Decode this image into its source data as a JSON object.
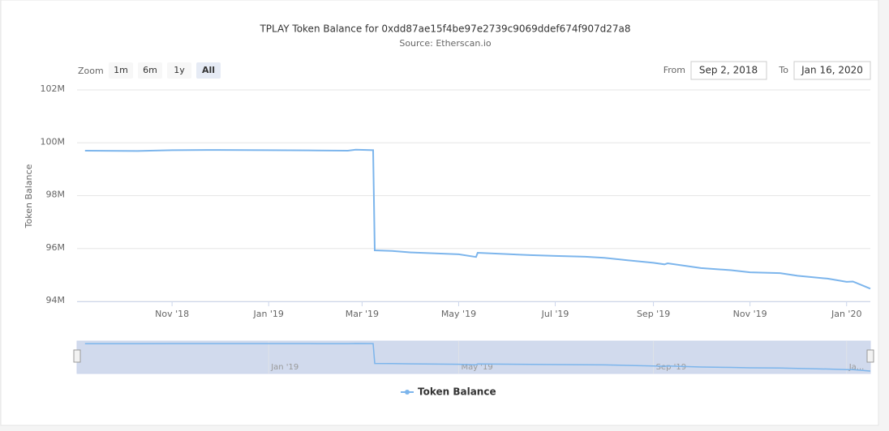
{
  "chart_data": {
    "type": "line",
    "title": "TPLAY Token Balance for 0xdd87ae15f4be97e2739c9069ddef674f907d27a8",
    "subtitle": "Source: Etherscan.io",
    "y_label": "Token Balance",
    "range_selector": {
      "label": "Zoom",
      "buttons": [
        "1m",
        "6m",
        "1y",
        "All"
      ],
      "selected": 3,
      "from_label": "From",
      "from": "Sep 2, 2018",
      "to_label": "To",
      "to": "Jan 16, 2020"
    },
    "x": [
      "2018-09-07",
      "2018-10-10",
      "2018-11-01",
      "2018-12-01",
      "2019-01-01",
      "2019-02-01",
      "2019-02-20",
      "2019-02-25",
      "2019-03-08",
      "2019-03-09",
      "2019-03-20",
      "2019-04-01",
      "2019-05-01",
      "2019-05-12",
      "2019-05-13",
      "2019-06-15",
      "2019-07-01",
      "2019-07-20",
      "2019-08-01",
      "2019-08-15",
      "2019-09-01",
      "2019-09-08",
      "2019-09-10",
      "2019-10-01",
      "2019-10-20",
      "2019-11-01",
      "2019-11-20",
      "2019-12-01",
      "2019-12-20",
      "2020-01-01",
      "2020-01-05",
      "2020-01-16"
    ],
    "series": [
      {
        "name": "Token Balance",
        "color": "#7cb5ec",
        "values": [
          99700000,
          99690000,
          99720000,
          99730000,
          99720000,
          99710000,
          99700000,
          99740000,
          99720000,
          95930000,
          95910000,
          95850000,
          95780000,
          95680000,
          95840000,
          95750000,
          95720000,
          95690000,
          95650000,
          95560000,
          95460000,
          95400000,
          95440000,
          95260000,
          95180000,
          95100000,
          95070000,
          94970000,
          94860000,
          94740000,
          94750000,
          94480000
        ]
      }
    ],
    "xlim": [
      "2018-09-02",
      "2020-01-16"
    ],
    "xticks": [
      {
        "value": "2018-11-01",
        "label": "Nov '18"
      },
      {
        "value": "2019-01-01",
        "label": "Jan '19"
      },
      {
        "value": "2019-03-01",
        "label": "Mar '19"
      },
      {
        "value": "2019-05-01",
        "label": "May '19"
      },
      {
        "value": "2019-07-01",
        "label": "Jul '19"
      },
      {
        "value": "2019-09-01",
        "label": "Sep '19"
      },
      {
        "value": "2019-11-01",
        "label": "Nov '19"
      },
      {
        "value": "2020-01-01",
        "label": "Jan '20"
      }
    ],
    "ylim": [
      94000000,
      102000000
    ],
    "yticks": [
      {
        "value": 94000000,
        "label": "94M"
      },
      {
        "value": 96000000,
        "label": "96M"
      },
      {
        "value": 98000000,
        "label": "98M"
      },
      {
        "value": 100000000,
        "label": "100M"
      },
      {
        "value": 102000000,
        "label": "102M"
      }
    ],
    "navigator_ticks": [
      {
        "value": "2019-01-01",
        "label": "Jan '19"
      },
      {
        "value": "2019-05-01",
        "label": "May '19"
      },
      {
        "value": "2019-09-01",
        "label": "Sep '19"
      },
      {
        "value": "2020-01-01",
        "label": "Ja..."
      }
    ],
    "grid": true,
    "legend": "bottom"
  }
}
